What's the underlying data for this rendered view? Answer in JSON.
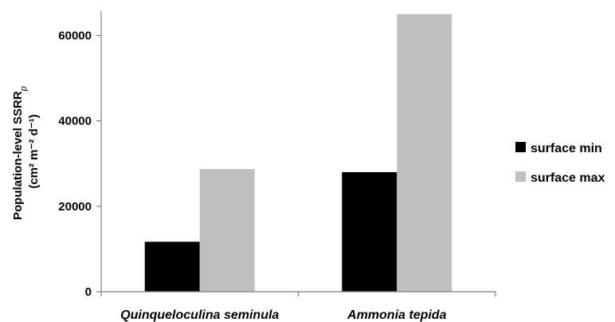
{
  "chart_data": {
    "type": "bar",
    "categories": [
      "Quinqueloculina seminula",
      "Ammonia tepida"
    ],
    "series": [
      {
        "name": "surface min",
        "values": [
          11700,
          28000
        ],
        "color": "#000000"
      },
      {
        "name": "surface max",
        "values": [
          28700,
          65000
        ],
        "color": "#bfbfbf"
      }
    ],
    "ylabel_line1": "Population-level SSRR",
    "ylabel_subscript": "p",
    "ylabel_line2": "(cm² m⁻² d⁻¹)",
    "ylim": [
      0,
      65000
    ],
    "yticks": [
      0,
      20000,
      40000,
      60000
    ],
    "ytick_labels": [
      "0",
      "20000",
      "40000",
      "60000"
    ],
    "grid": false,
    "legend_position": "right"
  }
}
